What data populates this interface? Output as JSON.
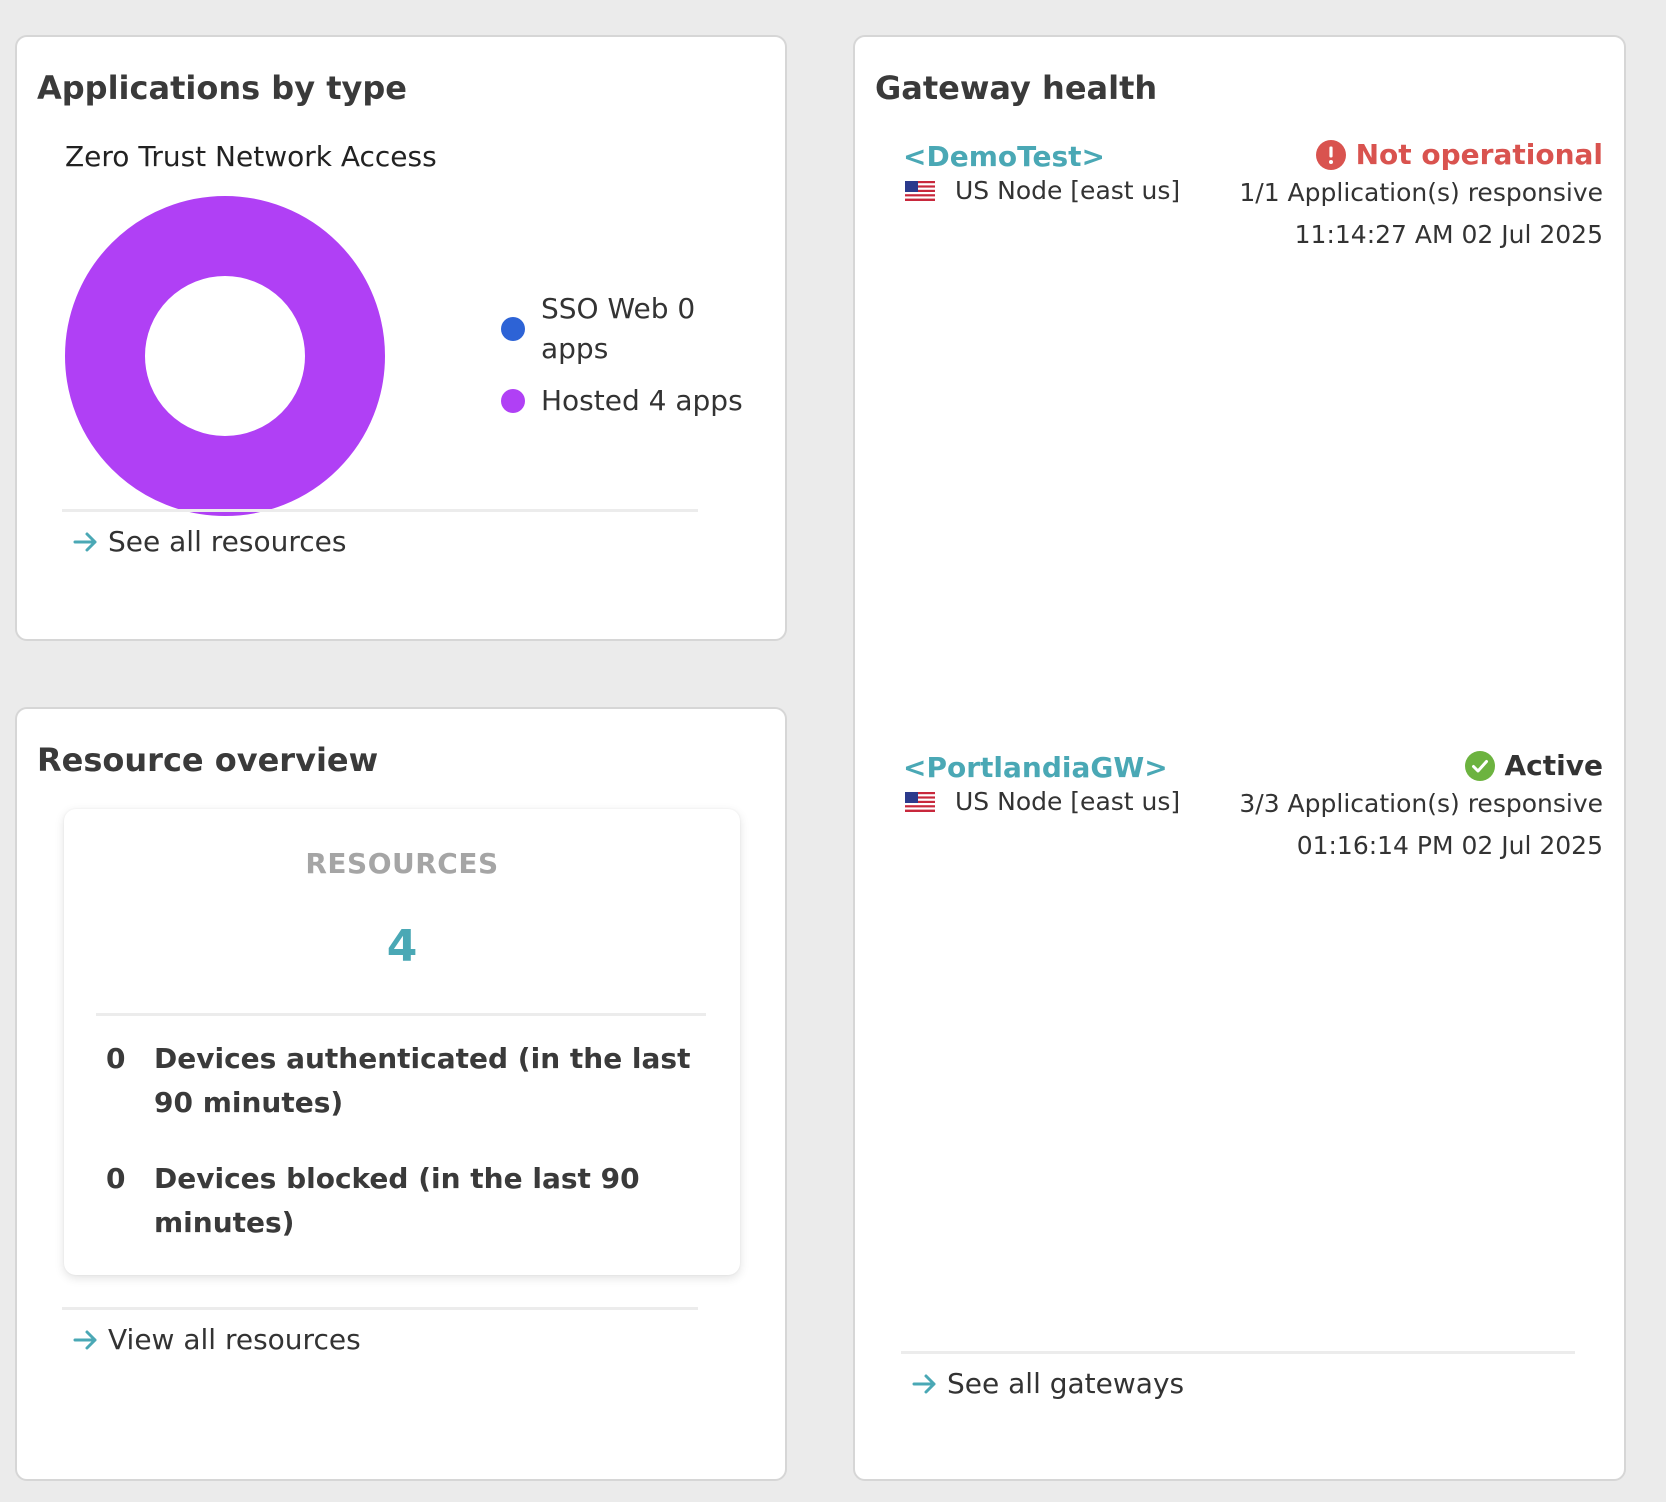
{
  "apps_card": {
    "title": "Applications by type",
    "subtitle": "Zero Trust Network Access",
    "legend": [
      {
        "label": "SSO Web 0 apps",
        "color": "#2d63d6"
      },
      {
        "label": "Hosted 4 apps",
        "color": "#b040f5"
      }
    ],
    "link_label": "See all resources"
  },
  "chart_data": {
    "type": "pie",
    "title": "Zero Trust Network Access",
    "categories": [
      "SSO Web",
      "Hosted"
    ],
    "values": [
      0,
      4
    ],
    "unit": "apps",
    "colors": [
      "#2d63d6",
      "#b040f5"
    ],
    "donut": true
  },
  "resources_card": {
    "title": "Resource overview",
    "resources_label": "RESOURCES",
    "resources_count": "4",
    "stats": [
      {
        "value": "0",
        "label": "Devices authenticated (in the last 90 minutes)"
      },
      {
        "value": "0",
        "label": "Devices blocked (in the last 90 minutes)"
      }
    ],
    "link_label": "View all resources"
  },
  "gateway_card": {
    "title": "Gateway health",
    "gateways": [
      {
        "name": "<DemoTest>",
        "node": "US Node [east us]",
        "status": "Not operational",
        "status_color": "#d9534f",
        "status_icon": "error-icon",
        "responsive": "1/1 Application(s) responsive",
        "timestamp": "11:14:27 AM 02 Jul 2025"
      },
      {
        "name": "<PortlandiaGW>",
        "node": "US Node [east us]",
        "status": "Active",
        "status_color": "#333333",
        "status_icon": "check-circle-icon",
        "responsive": "3/3 Application(s) responsive",
        "timestamp": "01:16:14 PM 02 Jul 2025"
      }
    ],
    "link_label": "See all gateways"
  },
  "colors": {
    "accent": "#4aa8b5",
    "error": "#d9534f",
    "success": "#6cb33f"
  }
}
